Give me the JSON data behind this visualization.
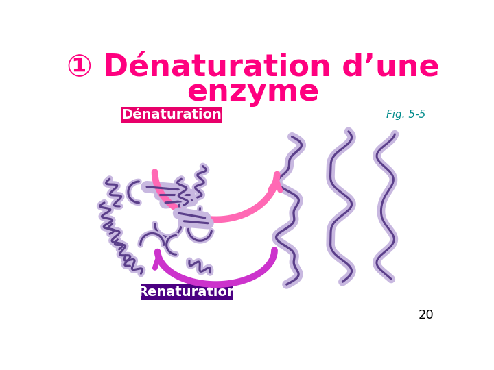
{
  "title_line1": "① Dénaturation d’une",
  "title_line2": "enzyme",
  "title_color": "#FF007F",
  "title_fontsize": 32,
  "title_fontweight": "bold",
  "denaturation_label": "Dénaturation",
  "denaturation_bg": "#E8006A",
  "denaturation_text_color": "#FFFFFF",
  "denaturation_fontsize": 14,
  "denaturation_fontweight": "bold",
  "renaturation_label": "Renaturation",
  "renaturation_bg": "#4B0082",
  "renaturation_text_color": "#FFFFFF",
  "renaturation_fontsize": 14,
  "renaturation_fontweight": "bold",
  "fig_label": "Fig. 5-5",
  "fig_label_color": "#008B8B",
  "fig_label_fontsize": 11,
  "page_number": "20",
  "page_number_color": "#000000",
  "page_number_fontsize": 13,
  "arrow_denaturation_color": "#FF69B4",
  "arrow_denaturation_tip": "#FF1493",
  "arrow_renaturation_color": "#CC33CC",
  "bg_color": "#FFFFFF",
  "protein_dark": "#5B3F8A",
  "protein_light": "#C8B8E0"
}
